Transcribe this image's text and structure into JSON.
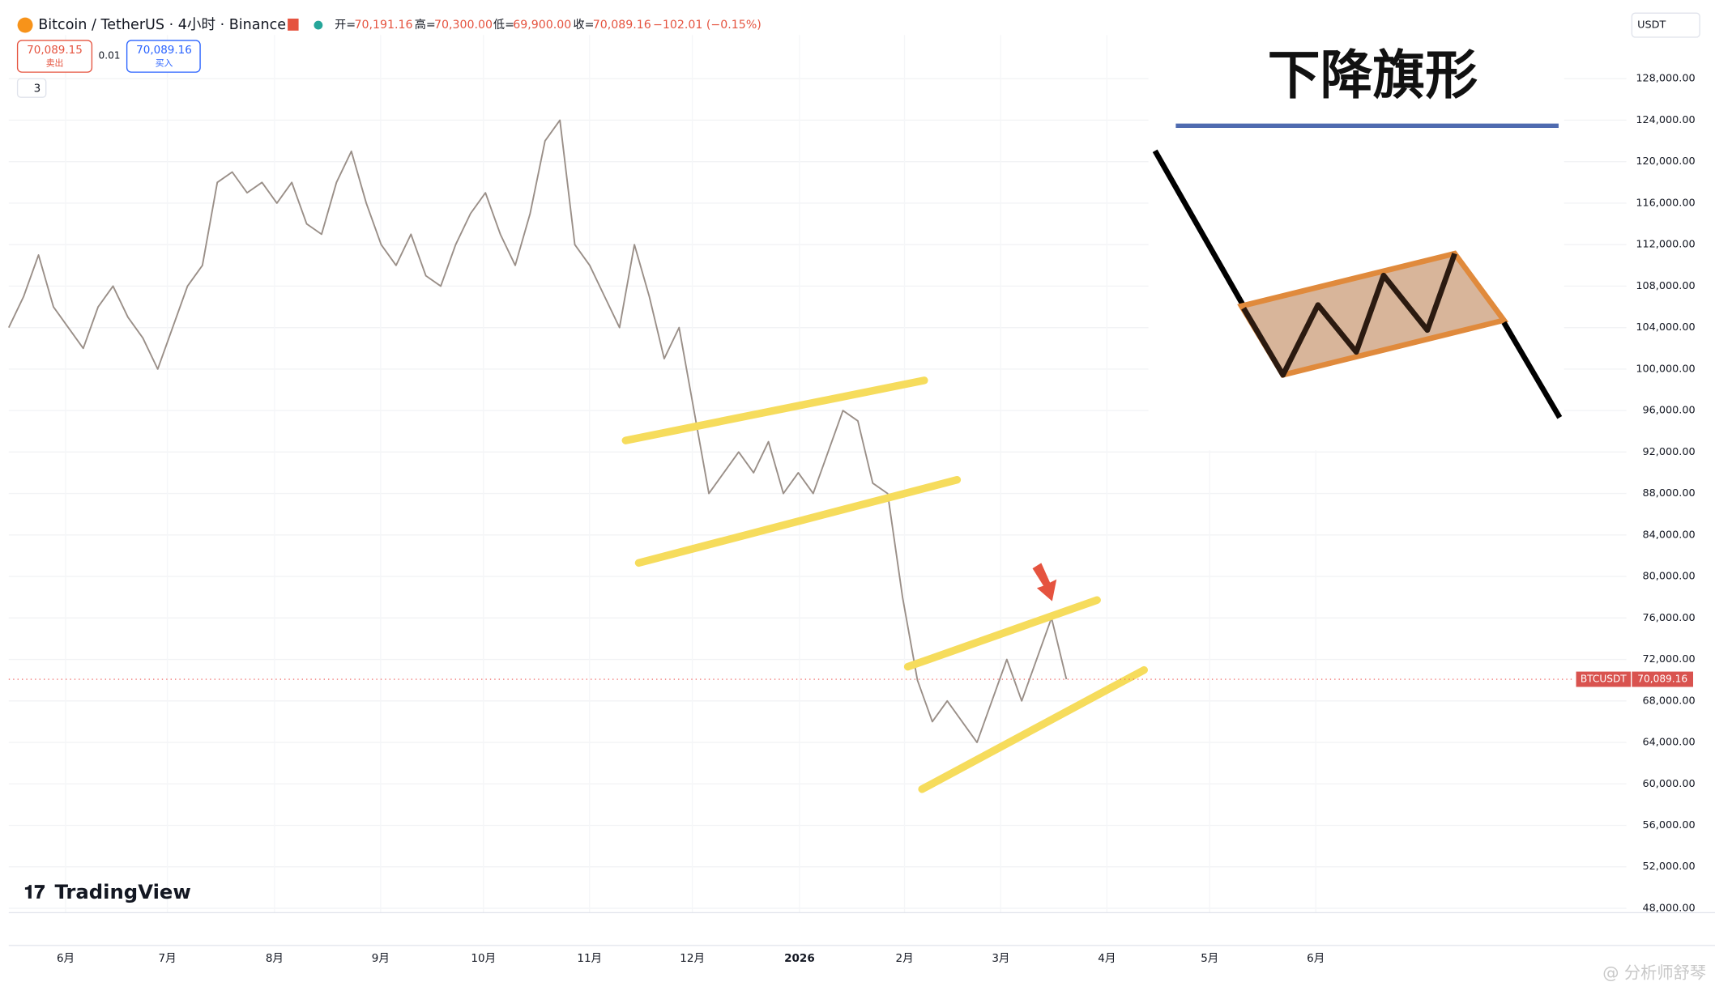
{
  "chart_data": {
    "type": "line",
    "header": {
      "symbol": "Bitcoin / TetherUS · 4小时 · Binance",
      "open_label": "开=",
      "open": "70,191.16",
      "high_label": "高=",
      "high": "70,300.00",
      "low_label": "低=",
      "low": "69,900.00",
      "close_label": "收=",
      "close": "70,089.16",
      "change": "−102.01 (−0.15%)"
    },
    "sell_price": "70,089.15",
    "sell_label": "卖出",
    "spread": "0.01",
    "buy_price": "70,089.16",
    "buy_label": "买入",
    "indicator_count": "3",
    "currency": "USDT",
    "brand": "TradingView",
    "watermark": "@ 分析师舒琴",
    "inset_title": "下降旗形",
    "symbol_tag": "BTCUSDT",
    "last_price": {
      "value": 70089.16,
      "label": "70,089.16"
    },
    "color": "#9a8f88",
    "values": [
      104000,
      107000,
      111000,
      106000,
      104000,
      102000,
      106000,
      108000,
      105000,
      103000,
      100000,
      104000,
      108000,
      110000,
      118000,
      119000,
      117000,
      118000,
      116000,
      118000,
      114000,
      113000,
      118000,
      121000,
      116000,
      112000,
      110000,
      113000,
      109000,
      108000,
      112000,
      115000,
      117000,
      113000,
      110000,
      115000,
      122000,
      124000,
      112000,
      110000,
      107000,
      104000,
      112000,
      107000,
      101000,
      104000,
      96000,
      88000,
      90000,
      92000,
      90000,
      93000,
      88000,
      90000,
      88000,
      92000,
      96000,
      95000,
      89000,
      88000,
      78000,
      70000,
      66000,
      68000,
      66000,
      64000,
      68000,
      72000,
      68000,
      72000,
      76000,
      70089.16
    ],
    "x_labels": [
      "6月",
      "7月",
      "8月",
      "9月",
      "10月",
      "11月",
      "12月",
      "2026",
      "2月",
      "3月",
      "4月",
      "5月",
      "6月"
    ],
    "ylim": [
      48000,
      128000
    ],
    "yticks": [
      {
        "value": 128000,
        "label": "128,000.00"
      },
      {
        "value": 124000,
        "label": "124,000.00"
      },
      {
        "value": 120000,
        "label": "120,000.00"
      },
      {
        "value": 116000,
        "label": "116,000.00"
      },
      {
        "value": 112000,
        "label": "112,000.00"
      },
      {
        "value": 108000,
        "label": "108,000.00"
      },
      {
        "value": 104000,
        "label": "104,000.00"
      },
      {
        "value": 100000,
        "label": "100,000.00"
      },
      {
        "value": 96000,
        "label": "96,000.00"
      },
      {
        "value": 92000,
        "label": "92,000.00"
      },
      {
        "value": 88000,
        "label": "88,000.00"
      },
      {
        "value": 84000,
        "label": "84,000.00"
      },
      {
        "value": 80000,
        "label": "80,000.00"
      },
      {
        "value": 76000,
        "label": "76,000.00"
      },
      {
        "value": 72000,
        "label": "72,000.00"
      },
      {
        "value": 68000,
        "label": "68,000.00"
      },
      {
        "value": 64000,
        "label": "64,000.00"
      },
      {
        "value": 60000,
        "label": "60,000.00"
      },
      {
        "value": 56000,
        "label": "56,000.00"
      },
      {
        "value": 52000,
        "label": "52,000.00"
      },
      {
        "value": 48000,
        "label": "48,000.00"
      }
    ],
    "grid": true
  }
}
